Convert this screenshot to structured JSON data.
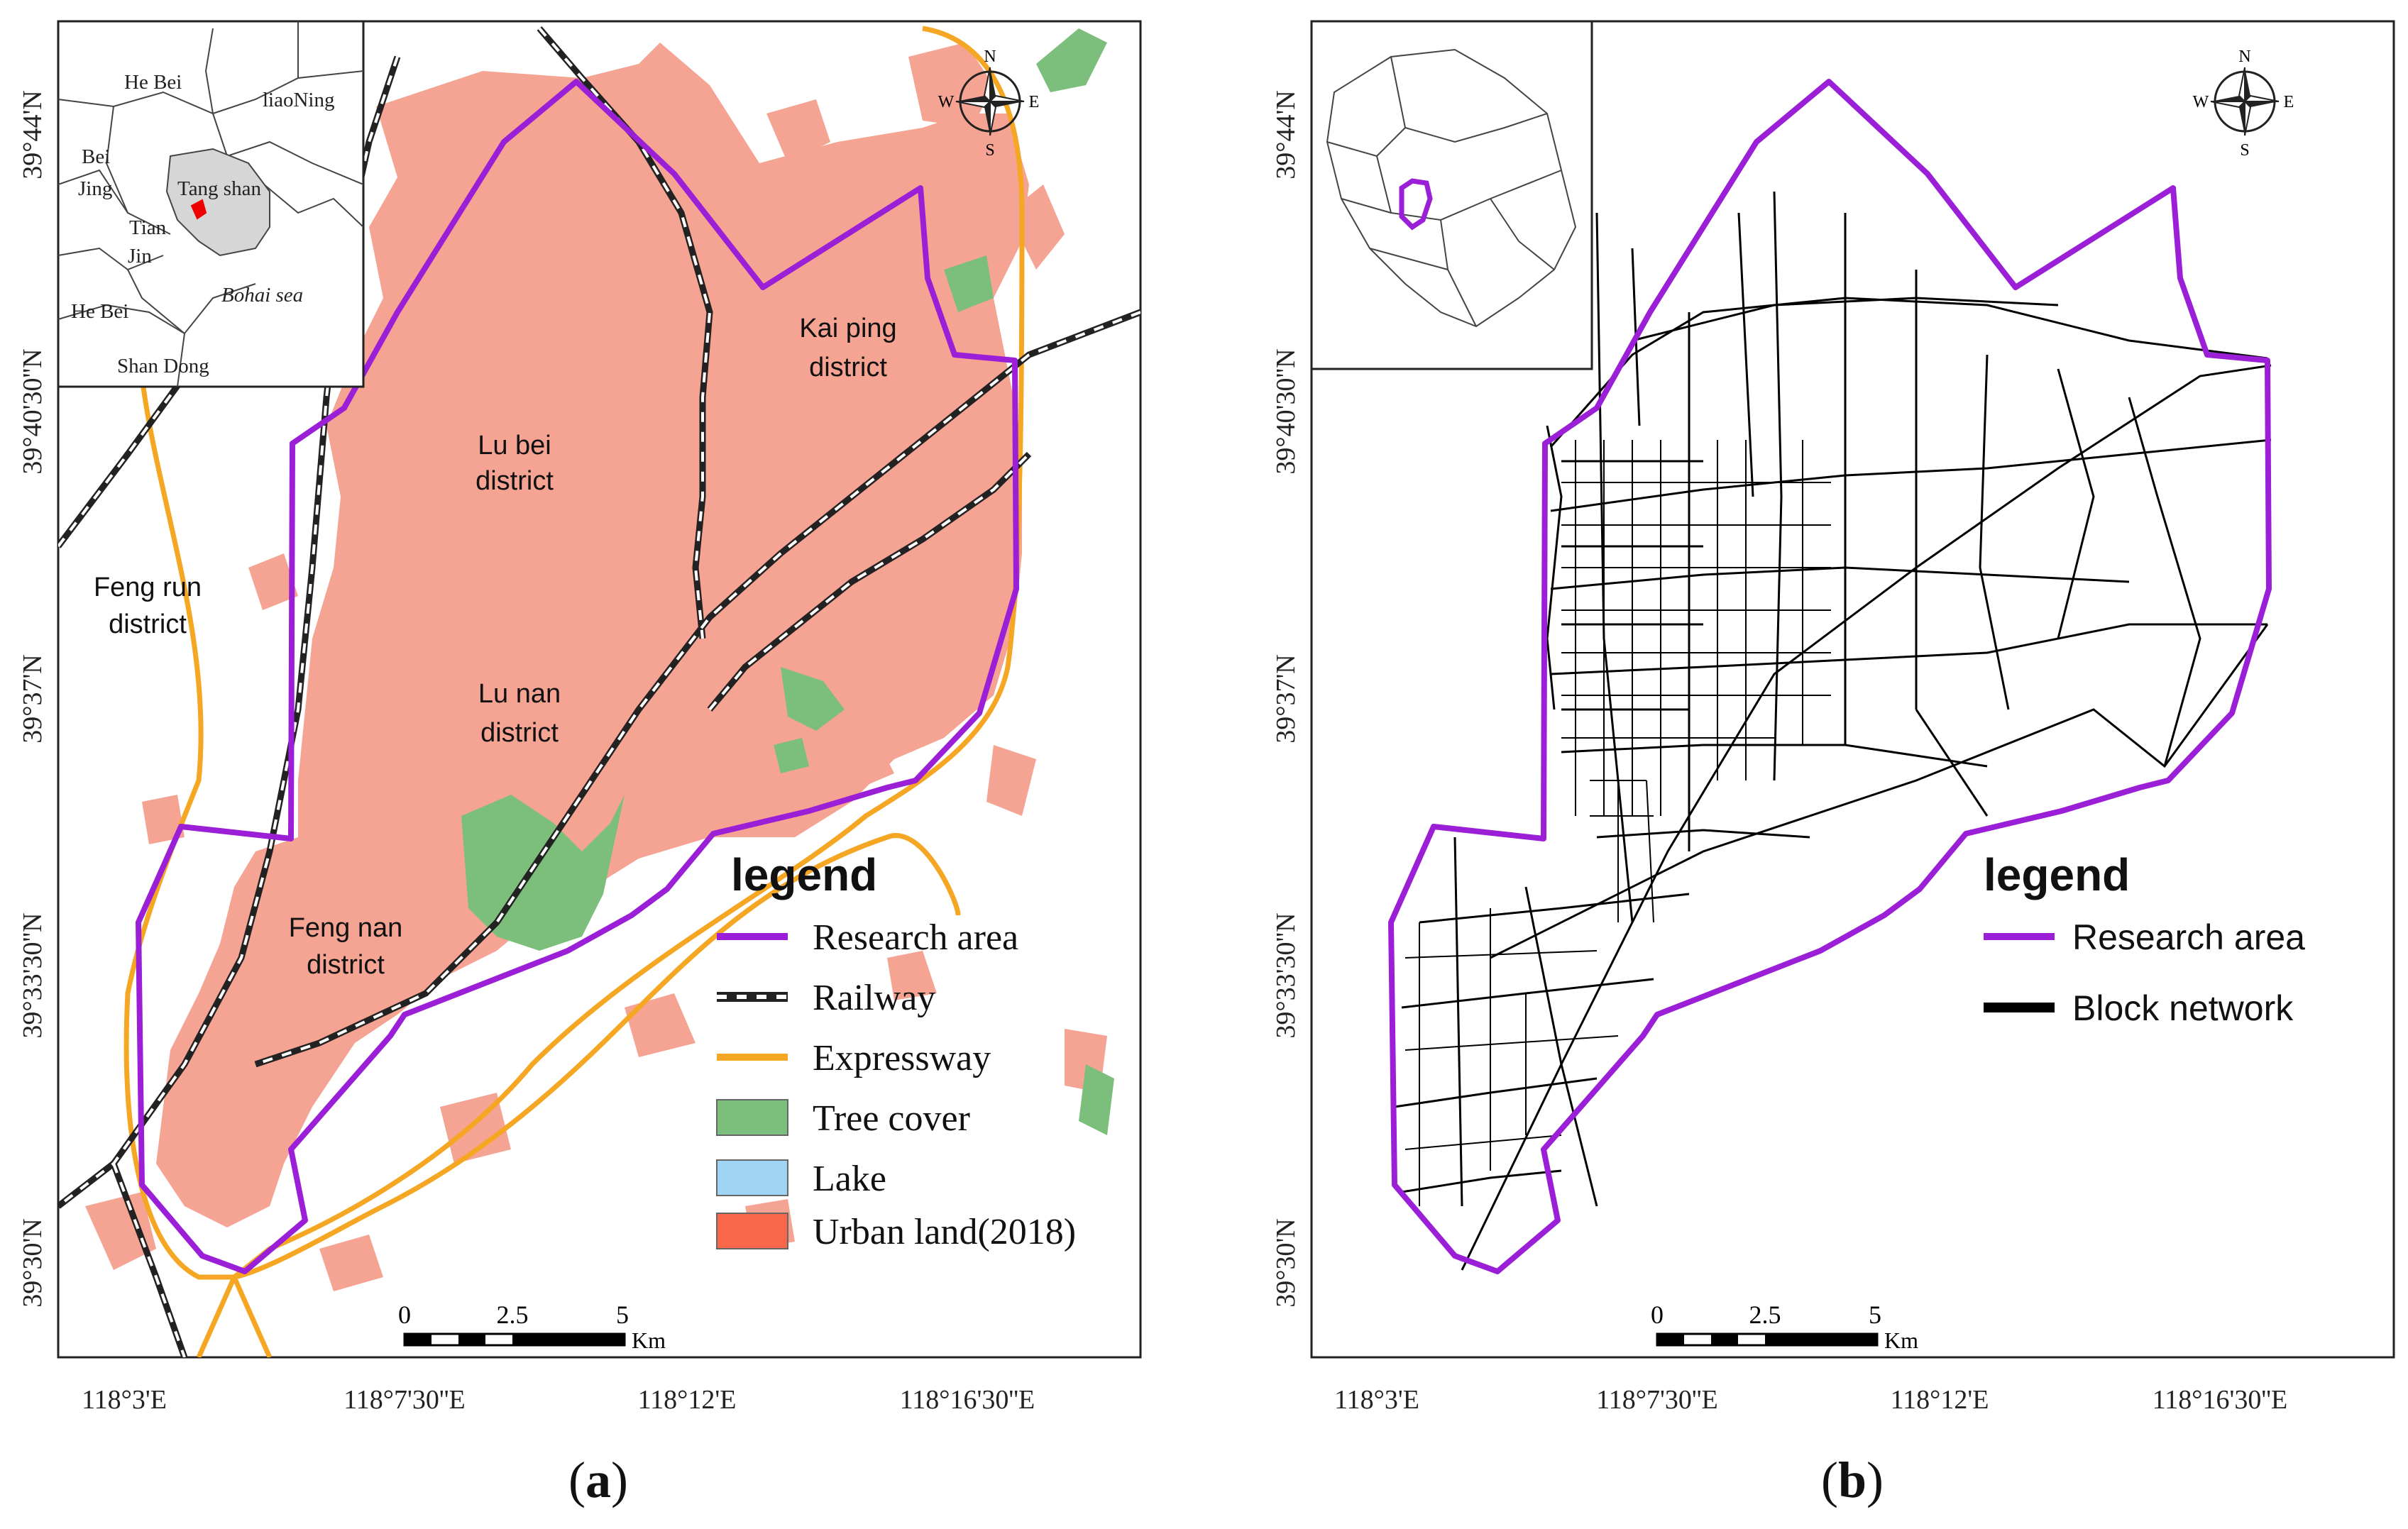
{
  "panel_a": {
    "caption_letter": "a",
    "lat_labels": [
      "39°44'N",
      "39°40'30''N",
      "39°37'N",
      "39°33'30''N",
      "39°30'N"
    ],
    "lon_labels": [
      "118°3'E",
      "118°7'30''E",
      "118°12'E",
      "118°16'30''E"
    ],
    "districts": [
      {
        "line1": "Lu bei",
        "line2": "district"
      },
      {
        "line1": "Kai ping",
        "line2": "district"
      },
      {
        "line1": "Lu nan",
        "line2": "district"
      },
      {
        "line1": "Feng run",
        "line2": "district"
      },
      {
        "line1": "Feng nan",
        "line2": "district"
      }
    ],
    "inset_labels": [
      "He Bei",
      "liaoNing",
      "Bei",
      "Jing",
      "Tang shan",
      "Tian",
      "Jin",
      "Bohai sea",
      "He Bei",
      "Shan Dong"
    ],
    "legend": {
      "title": "legend",
      "items": [
        {
          "label": "Research area",
          "color": "#9b1fd6"
        },
        {
          "label": "Railway",
          "color": "#222222"
        },
        {
          "label": "Expressway",
          "color": "#f5a623"
        },
        {
          "label": "Tree cover",
          "color": "#7cbf7c"
        },
        {
          "label": "Lake",
          "color": "#9fd4f5"
        },
        {
          "label": "Urban land(2018)",
          "color": "#f8674a"
        }
      ]
    },
    "scalebar": {
      "ticks": [
        "0",
        "2.5",
        "5"
      ],
      "unit": "Km"
    },
    "compass": {
      "n": "N",
      "s": "S",
      "e": "E",
      "w": "W"
    }
  },
  "panel_b": {
    "caption_letter": "b",
    "lat_labels": [
      "39°44'N",
      "39°40'30''N",
      "39°37'N",
      "39°33'30''N",
      "39°30'N"
    ],
    "lon_labels": [
      "118°3'E",
      "118°7'30''E",
      "118°12'E",
      "118°16'30''E"
    ],
    "legend": {
      "title": "legend",
      "items": [
        {
          "label": "Research area",
          "color": "#9b1fd6"
        },
        {
          "label": "Block network",
          "color": "#000000"
        }
      ]
    },
    "scalebar": {
      "ticks": [
        "0",
        "2.5",
        "5"
      ],
      "unit": "Km"
    },
    "compass": {
      "n": "N",
      "s": "S",
      "e": "E",
      "w": "W"
    }
  },
  "colors": {
    "research_area": "#9b1fd6",
    "urban": "#f5a493",
    "tree": "#7cbf7c",
    "expressway": "#f5a623",
    "railway": "#222222"
  }
}
